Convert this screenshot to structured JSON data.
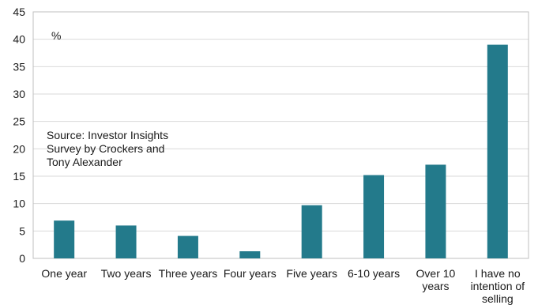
{
  "chart_data": {
    "type": "bar",
    "categories": [
      "One year",
      "Two years",
      "Three years",
      "Four years",
      "Five years",
      "6-10 years",
      "Over 10\nyears",
      "I have no\nintention of\nselling"
    ],
    "values": [
      6.9,
      6.0,
      4.1,
      1.3,
      9.7,
      15.2,
      17.1,
      39.0
    ],
    "ylabel": "%",
    "ylim": [
      0,
      45
    ],
    "yticks": [
      0,
      5,
      10,
      15,
      20,
      25,
      30,
      35,
      40,
      45
    ],
    "grid": true,
    "bar_color": "#237A8B",
    "annotation": "Source: Investor Insights\nSurvey by Crockers and\nTony Alexander"
  }
}
